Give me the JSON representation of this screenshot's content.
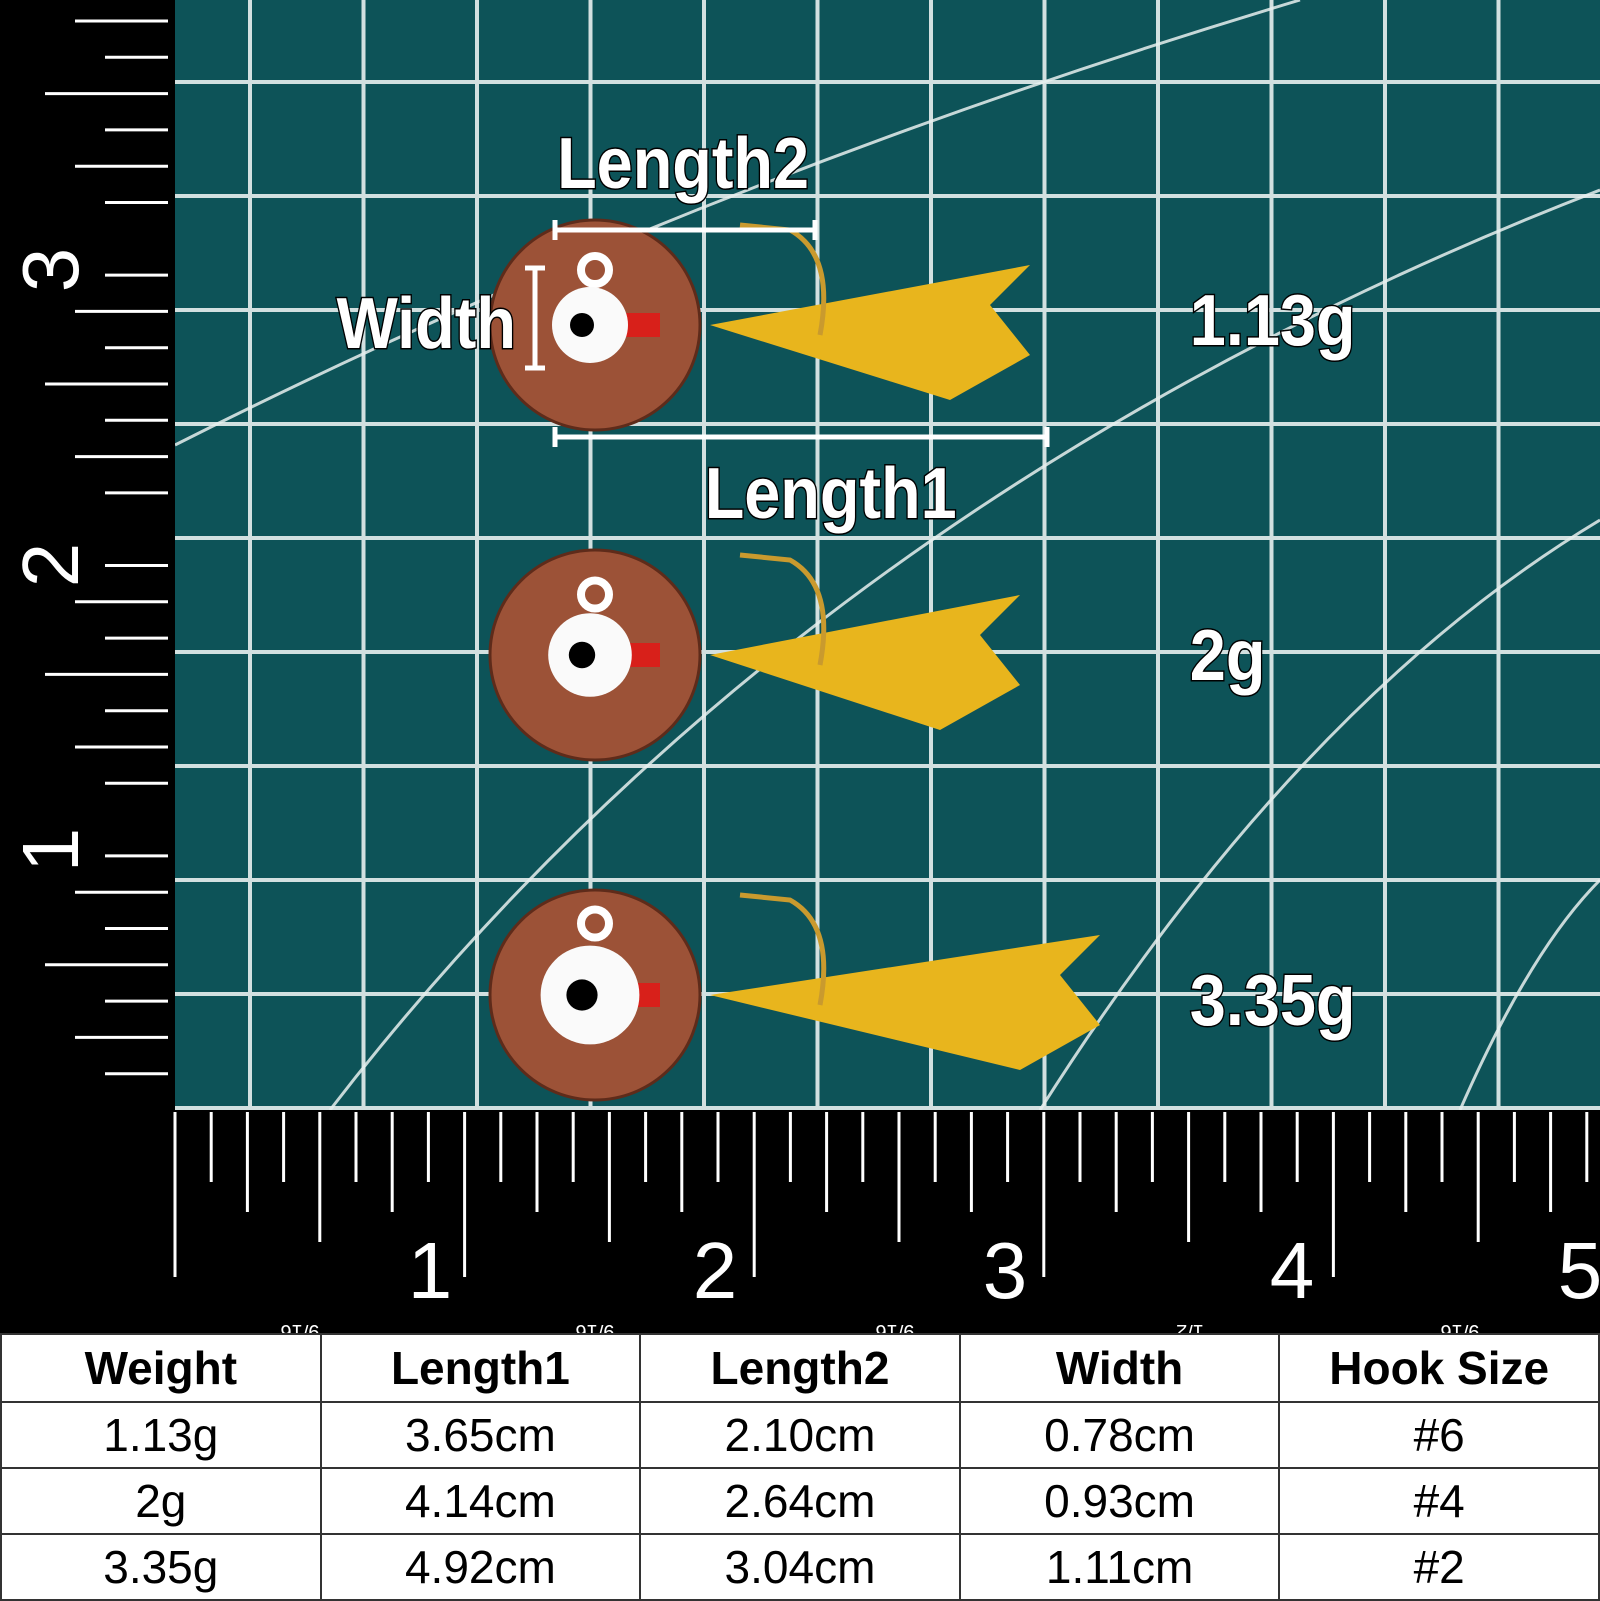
{
  "colors": {
    "mat": "#0d5358",
    "grid": "#e8f0ef",
    "ruler": "#000000",
    "penny": "#9c5237",
    "feather": "#e8b51d",
    "thread": "#d8201a"
  },
  "labels": {
    "length2": "Length2",
    "width": "Width",
    "length1": "Length1"
  },
  "weights_overlay": [
    "1.13g",
    "2g",
    "3.35g"
  ],
  "ruler_left": [
    "3",
    "2",
    "1"
  ],
  "ruler_bottom": [
    "1",
    "2",
    "3",
    "4",
    "5"
  ],
  "ruler_fractions": [
    "9/16",
    "9/16",
    "9/16",
    "1/2",
    "9/16"
  ],
  "table": {
    "headers": [
      "Weight",
      "Length1",
      "Length2",
      "Width",
      "Hook Size"
    ],
    "rows": [
      [
        "1.13g",
        "3.65cm",
        "2.10cm",
        "0.78cm",
        "#6"
      ],
      [
        "2g",
        "4.14cm",
        "2.64cm",
        "0.93cm",
        "#4"
      ],
      [
        "3.35g",
        "4.92cm",
        "3.04cm",
        "1.11cm",
        "#2"
      ]
    ]
  }
}
